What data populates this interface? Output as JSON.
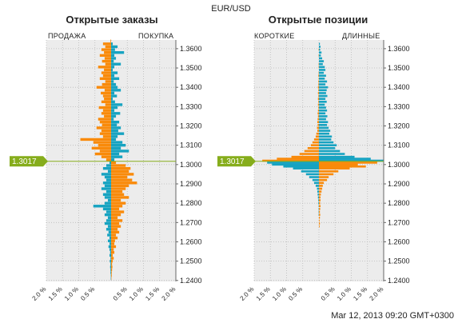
{
  "header": {
    "pair": "EUR/USD",
    "timestamp": "Mar 12, 2013 09:20 GMT+0300"
  },
  "colors": {
    "short": "#f98a0a",
    "long": "#17a3c1",
    "price_marker": "#86ad1c",
    "plot_bg": "#ececec",
    "grid": "#b9b9b9"
  },
  "chart_data": [
    {
      "type": "bar",
      "orientation": "horizontal",
      "title": "Открытые заказы",
      "left_label": "ПРОДАЖА",
      "right_label": "ПОКУПКА",
      "current_price": "1.3017",
      "current_price_value": 1.3017,
      "y_range": [
        1.2395,
        1.3645
      ],
      "y_ticks": [
        "1.2400",
        "1.2500",
        "1.2600",
        "1.2700",
        "1.2800",
        "1.2900",
        "1.3000",
        "1.3100",
        "1.3200",
        "1.3300",
        "1.3400",
        "1.3500",
        "1.3600"
      ],
      "x_tick_labels": [
        "2.0 %",
        "1.5 %",
        "1.0 %",
        "0.5 %",
        "0.5 %",
        "1.0 %",
        "1.5 %",
        "2.0 %"
      ],
      "x_range_pct": [
        -2.0,
        2.0
      ],
      "rows": [
        {
          "p": 1.364,
          "s": 0.02,
          "b": 0.0
        },
        {
          "p": 1.3625,
          "s": 0.25,
          "b": 0.05
        },
        {
          "p": 1.361,
          "s": 0.18,
          "b": 0.2
        },
        {
          "p": 1.3595,
          "s": 0.3,
          "b": 0.12
        },
        {
          "p": 1.358,
          "s": 0.22,
          "b": 0.4
        },
        {
          "p": 1.3565,
          "s": 0.35,
          "b": 0.1
        },
        {
          "p": 1.355,
          "s": 0.2,
          "b": 0.15
        },
        {
          "p": 1.3535,
          "s": 0.28,
          "b": 0.08
        },
        {
          "p": 1.352,
          "s": 0.18,
          "b": 0.3
        },
        {
          "p": 1.3505,
          "s": 0.4,
          "b": 0.1
        },
        {
          "p": 1.349,
          "s": 0.22,
          "b": 0.05
        },
        {
          "p": 1.3475,
          "s": 0.3,
          "b": 0.2
        },
        {
          "p": 1.346,
          "s": 0.25,
          "b": 0.1
        },
        {
          "p": 1.3445,
          "s": 0.35,
          "b": 0.25
        },
        {
          "p": 1.343,
          "s": 0.18,
          "b": 0.08
        },
        {
          "p": 1.3415,
          "s": 0.28,
          "b": 0.15
        },
        {
          "p": 1.34,
          "s": 0.45,
          "b": 0.2
        },
        {
          "p": 1.3385,
          "s": 0.2,
          "b": 0.3
        },
        {
          "p": 1.337,
          "s": 0.32,
          "b": 0.1
        },
        {
          "p": 1.3355,
          "s": 0.25,
          "b": 0.18
        },
        {
          "p": 1.334,
          "s": 0.22,
          "b": 0.05
        },
        {
          "p": 1.3325,
          "s": 0.3,
          "b": 0.12
        },
        {
          "p": 1.331,
          "s": 0.18,
          "b": 0.35
        },
        {
          "p": 1.3295,
          "s": 0.38,
          "b": 0.2
        },
        {
          "p": 1.328,
          "s": 0.25,
          "b": 0.1
        },
        {
          "p": 1.3265,
          "s": 0.3,
          "b": 0.28
        },
        {
          "p": 1.325,
          "s": 0.22,
          "b": 0.15
        },
        {
          "p": 1.3235,
          "s": 0.4,
          "b": 0.08
        },
        {
          "p": 1.322,
          "s": 0.35,
          "b": 0.25
        },
        {
          "p": 1.3205,
          "s": 0.28,
          "b": 0.18
        },
        {
          "p": 1.319,
          "s": 0.45,
          "b": 0.3
        },
        {
          "p": 1.3175,
          "s": 0.3,
          "b": 0.22
        },
        {
          "p": 1.316,
          "s": 0.35,
          "b": 0.4
        },
        {
          "p": 1.3145,
          "s": 0.25,
          "b": 0.2
        },
        {
          "p": 1.313,
          "s": 0.95,
          "b": 0.15
        },
        {
          "p": 1.3115,
          "s": 0.55,
          "b": 0.35
        },
        {
          "p": 1.31,
          "s": 0.4,
          "b": 0.45
        },
        {
          "p": 1.3085,
          "s": 0.6,
          "b": 0.3
        },
        {
          "p": 1.307,
          "s": 0.35,
          "b": 0.55
        },
        {
          "p": 1.3055,
          "s": 0.5,
          "b": 0.25
        },
        {
          "p": 1.304,
          "s": 0.3,
          "b": 0.35
        },
        {
          "p": 1.3025,
          "s": 0.15,
          "b": 0.1
        },
        {
          "p": 1.301,
          "s": 0.05,
          "b": 0.15
        },
        {
          "p": 1.2995,
          "s": 0.15,
          "b": 0.45
        },
        {
          "p": 1.298,
          "s": 0.25,
          "b": 0.6
        },
        {
          "p": 1.2965,
          "s": 0.1,
          "b": 0.55
        },
        {
          "p": 1.295,
          "s": 0.3,
          "b": 0.7
        },
        {
          "p": 1.2935,
          "s": 0.2,
          "b": 0.5
        },
        {
          "p": 1.292,
          "s": 0.15,
          "b": 0.65
        },
        {
          "p": 1.2905,
          "s": 0.25,
          "b": 0.8
        },
        {
          "p": 1.289,
          "s": 0.2,
          "b": 0.55
        },
        {
          "p": 1.2875,
          "s": 0.3,
          "b": 0.45
        },
        {
          "p": 1.286,
          "s": 0.15,
          "b": 0.35
        },
        {
          "p": 1.2845,
          "s": 0.25,
          "b": 0.4
        },
        {
          "p": 1.283,
          "s": 0.2,
          "b": 0.55
        },
        {
          "p": 1.2815,
          "s": 0.1,
          "b": 0.3
        },
        {
          "p": 1.28,
          "s": 0.2,
          "b": 0.45
        },
        {
          "p": 1.2785,
          "s": 0.55,
          "b": 0.35
        },
        {
          "p": 1.277,
          "s": 0.25,
          "b": 0.25
        },
        {
          "p": 1.2755,
          "s": 0.15,
          "b": 0.4
        },
        {
          "p": 1.274,
          "s": 0.2,
          "b": 0.3
        },
        {
          "p": 1.2725,
          "s": 0.1,
          "b": 0.2
        },
        {
          "p": 1.271,
          "s": 0.15,
          "b": 0.35
        },
        {
          "p": 1.2695,
          "s": 0.2,
          "b": 0.25
        },
        {
          "p": 1.268,
          "s": 0.1,
          "b": 0.3
        },
        {
          "p": 1.2665,
          "s": 0.15,
          "b": 0.2
        },
        {
          "p": 1.265,
          "s": 0.08,
          "b": 0.25
        },
        {
          "p": 1.2635,
          "s": 0.12,
          "b": 0.15
        },
        {
          "p": 1.262,
          "s": 0.05,
          "b": 0.2
        },
        {
          "p": 1.2605,
          "s": 0.1,
          "b": 0.12
        },
        {
          "p": 1.259,
          "s": 0.05,
          "b": 0.1
        },
        {
          "p": 1.2575,
          "s": 0.08,
          "b": 0.15
        },
        {
          "p": 1.256,
          "s": 0.05,
          "b": 0.08
        },
        {
          "p": 1.2545,
          "s": 0.03,
          "b": 0.1
        },
        {
          "p": 1.253,
          "s": 0.05,
          "b": 0.05
        },
        {
          "p": 1.2515,
          "s": 0.02,
          "b": 0.08
        },
        {
          "p": 1.25,
          "s": 0.04,
          "b": 0.05
        },
        {
          "p": 1.2485,
          "s": 0.02,
          "b": 0.03
        },
        {
          "p": 1.247,
          "s": 0.03,
          "b": 0.04
        },
        {
          "p": 1.2455,
          "s": 0.02,
          "b": 0.03
        },
        {
          "p": 1.244,
          "s": 0.02,
          "b": 0.02
        },
        {
          "p": 1.2425,
          "s": 0.01,
          "b": 0.02
        },
        {
          "p": 1.241,
          "s": 0.01,
          "b": 0.01
        }
      ]
    },
    {
      "type": "bar",
      "orientation": "horizontal",
      "title": "Открытые позиции",
      "left_label": "КОРОТКИЕ",
      "right_label": "ДЛИННЫЕ",
      "current_price": "1.3017",
      "current_price_value": 1.3017,
      "y_range": [
        1.2395,
        1.3645
      ],
      "y_ticks": [
        "1.2400",
        "1.2500",
        "1.2600",
        "1.2700",
        "1.2800",
        "1.2900",
        "1.3000",
        "1.3100",
        "1.3200",
        "1.3300",
        "1.3400",
        "1.3500",
        "1.3600"
      ],
      "x_tick_labels": [
        "2.0 %",
        "1.5 %",
        "1.0 %",
        "0.5 %",
        "0.5 %",
        "1.0 %",
        "1.5 %",
        "2.0 %"
      ],
      "x_range_pct": [
        -2.0,
        2.0
      ],
      "rows": [
        {
          "p": 1.3625,
          "s": 0.0,
          "b": 0.03
        },
        {
          "p": 1.361,
          "s": 0.0,
          "b": 0.05
        },
        {
          "p": 1.3595,
          "s": 0.01,
          "b": 0.04
        },
        {
          "p": 1.358,
          "s": 0.0,
          "b": 0.08
        },
        {
          "p": 1.3565,
          "s": 0.01,
          "b": 0.06
        },
        {
          "p": 1.355,
          "s": 0.0,
          "b": 0.1
        },
        {
          "p": 1.3535,
          "s": 0.0,
          "b": 0.15
        },
        {
          "p": 1.352,
          "s": 0.01,
          "b": 0.12
        },
        {
          "p": 1.3505,
          "s": 0.01,
          "b": 0.18
        },
        {
          "p": 1.349,
          "s": 0.0,
          "b": 0.2
        },
        {
          "p": 1.3475,
          "s": 0.01,
          "b": 0.15
        },
        {
          "p": 1.346,
          "s": 0.02,
          "b": 0.22
        },
        {
          "p": 1.3445,
          "s": 0.01,
          "b": 0.18
        },
        {
          "p": 1.343,
          "s": 0.02,
          "b": 0.25
        },
        {
          "p": 1.3415,
          "s": 0.02,
          "b": 0.2
        },
        {
          "p": 1.34,
          "s": 0.03,
          "b": 0.28
        },
        {
          "p": 1.3385,
          "s": 0.02,
          "b": 0.24
        },
        {
          "p": 1.337,
          "s": 0.03,
          "b": 0.22
        },
        {
          "p": 1.3355,
          "s": 0.02,
          "b": 0.26
        },
        {
          "p": 1.334,
          "s": 0.03,
          "b": 0.2
        },
        {
          "p": 1.3325,
          "s": 0.02,
          "b": 0.24
        },
        {
          "p": 1.331,
          "s": 0.03,
          "b": 0.18
        },
        {
          "p": 1.3295,
          "s": 0.02,
          "b": 0.22
        },
        {
          "p": 1.328,
          "s": 0.03,
          "b": 0.25
        },
        {
          "p": 1.3265,
          "s": 0.04,
          "b": 0.2
        },
        {
          "p": 1.325,
          "s": 0.03,
          "b": 0.26
        },
        {
          "p": 1.3235,
          "s": 0.04,
          "b": 0.22
        },
        {
          "p": 1.322,
          "s": 0.05,
          "b": 0.28
        },
        {
          "p": 1.3205,
          "s": 0.04,
          "b": 0.25
        },
        {
          "p": 1.319,
          "s": 0.06,
          "b": 0.3
        },
        {
          "p": 1.3175,
          "s": 0.05,
          "b": 0.35
        },
        {
          "p": 1.316,
          "s": 0.08,
          "b": 0.32
        },
        {
          "p": 1.3145,
          "s": 0.1,
          "b": 0.4
        },
        {
          "p": 1.313,
          "s": 0.15,
          "b": 0.38
        },
        {
          "p": 1.3115,
          "s": 0.2,
          "b": 0.45
        },
        {
          "p": 1.31,
          "s": 0.25,
          "b": 0.55
        },
        {
          "p": 1.3085,
          "s": 0.35,
          "b": 0.5
        },
        {
          "p": 1.307,
          "s": 0.45,
          "b": 0.65
        },
        {
          "p": 1.3055,
          "s": 0.6,
          "b": 0.8
        },
        {
          "p": 1.304,
          "s": 0.85,
          "b": 1.1
        },
        {
          "p": 1.303,
          "s": 1.3,
          "b": 1.6
        },
        {
          "p": 1.302,
          "s": 1.75,
          "b": 2.0
        },
        {
          "p": 1.301,
          "s": 1.6,
          "b": 1.8
        },
        {
          "p": 1.3,
          "s": 1.45,
          "b": 1.2
        },
        {
          "p": 1.299,
          "s": 1.1,
          "b": 1.45
        },
        {
          "p": 1.298,
          "s": 0.8,
          "b": 0.95
        },
        {
          "p": 1.2965,
          "s": 0.55,
          "b": 0.6
        },
        {
          "p": 1.295,
          "s": 0.4,
          "b": 0.45
        },
        {
          "p": 1.2935,
          "s": 0.3,
          "b": 0.3
        },
        {
          "p": 1.292,
          "s": 0.2,
          "b": 0.25
        },
        {
          "p": 1.2905,
          "s": 0.15,
          "b": 0.15
        },
        {
          "p": 1.289,
          "s": 0.1,
          "b": 0.12
        },
        {
          "p": 1.2875,
          "s": 0.06,
          "b": 0.1
        },
        {
          "p": 1.286,
          "s": 0.05,
          "b": 0.08
        },
        {
          "p": 1.2845,
          "s": 0.04,
          "b": 0.06
        },
        {
          "p": 1.283,
          "s": 0.03,
          "b": 0.05
        },
        {
          "p": 1.2815,
          "s": 0.02,
          "b": 0.05
        },
        {
          "p": 1.28,
          "s": 0.02,
          "b": 0.04
        },
        {
          "p": 1.2785,
          "s": 0.01,
          "b": 0.05
        },
        {
          "p": 1.277,
          "s": 0.01,
          "b": 0.04
        },
        {
          "p": 1.2755,
          "s": 0.01,
          "b": 0.03
        },
        {
          "p": 1.274,
          "s": 0.01,
          "b": 0.04
        },
        {
          "p": 1.2725,
          "s": 0.0,
          "b": 0.03
        },
        {
          "p": 1.271,
          "s": 0.0,
          "b": 0.02
        },
        {
          "p": 1.2695,
          "s": 0.0,
          "b": 0.03
        },
        {
          "p": 1.268,
          "s": 0.0,
          "b": 0.02
        }
      ]
    }
  ]
}
